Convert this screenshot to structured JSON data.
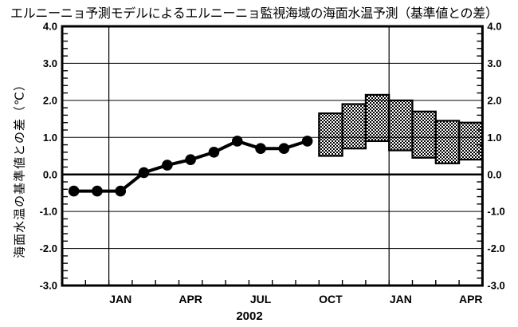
{
  "title": "エルニーニョ予測モデルによるエルニーニョ監視海域の海面水温予測（基準値との差）",
  "colors": {
    "foreground": "#000000",
    "background": "#ffffff"
  },
  "chart_data": {
    "type": "line",
    "title": "エルニーニョ予測モデルによるエルニーニョ監視海域の海面水温予測（基準値との差）",
    "ylabel": "海面水温の基準値との差（℃）",
    "year_label": "2002",
    "ylim": [
      -3.0,
      4.0
    ],
    "y_major_ticks": [
      4.0,
      3.0,
      2.0,
      1.0,
      0.0,
      -1.0,
      -2.0,
      -3.0
    ],
    "y_tick_labels": [
      "4.0",
      "3.0",
      "2.0",
      "1.0",
      "0.0",
      "-1.0",
      "-2.0",
      "-3.0"
    ],
    "y_minor_step": 0.2,
    "grid": "horizontal lines at integer values (thick at 0.0), vertical lines at each JAN",
    "months": [
      "NOV",
      "DEC",
      "JAN",
      "FEB",
      "MAR",
      "APR",
      "MAY",
      "JUN",
      "JUL",
      "AUG",
      "SEP",
      "OCT",
      "NOV",
      "DEC",
      "JAN",
      "FEB",
      "MAR",
      "APR"
    ],
    "x_axis_labels": [
      {
        "label": "JAN",
        "month_index": 2
      },
      {
        "label": "APR",
        "month_index": 5
      },
      {
        "label": "JUL",
        "month_index": 8
      },
      {
        "label": "OCT",
        "month_index": 11
      },
      {
        "label": "JAN",
        "month_index": 14
      },
      {
        "label": "APR",
        "month_index": 17
      }
    ],
    "january_gridline_month_indices": [
      2,
      14
    ],
    "observed_series": {
      "style": "thick black line with filled circle markers",
      "month_indices": [
        0,
        1,
        2,
        3,
        4,
        5,
        6,
        7,
        8,
        9,
        10
      ],
      "values": [
        -0.45,
        -0.45,
        -0.45,
        0.05,
        0.25,
        0.4,
        0.6,
        0.9,
        0.7,
        0.7,
        0.9
      ]
    },
    "forecast_bars": {
      "style": "checkered-hatch range boxes, one month wide",
      "bars": [
        {
          "month_index": 11,
          "month": "OCT",
          "low": 0.5,
          "high": 1.65
        },
        {
          "month_index": 12,
          "month": "NOV",
          "low": 0.7,
          "high": 1.9
        },
        {
          "month_index": 13,
          "month": "DEC",
          "low": 0.9,
          "high": 2.15
        },
        {
          "month_index": 14,
          "month": "JAN",
          "low": 0.65,
          "high": 2.0
        },
        {
          "month_index": 15,
          "month": "FEB",
          "low": 0.45,
          "high": 1.7
        },
        {
          "month_index": 16,
          "month": "MAR",
          "low": 0.3,
          "high": 1.45
        },
        {
          "month_index": 17,
          "month": "APR",
          "low": 0.4,
          "high": 1.4
        }
      ]
    }
  }
}
